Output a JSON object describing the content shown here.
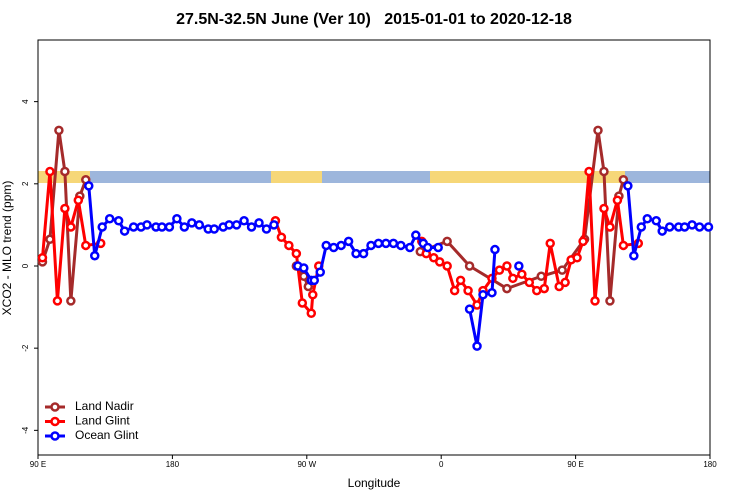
{
  "chart_data": {
    "type": "line",
    "title": "27.5N-32.5N June (Ver 10)   2015-01-01 to 2020-12-18",
    "x_label": "Longitude",
    "y_label": "XCO2 - MLO trend (ppm)",
    "xlim": [
      90,
      540
    ],
    "xticks": [
      {
        "value": 90,
        "label": "90 E"
      },
      {
        "value": 180,
        "label": "180"
      },
      {
        "value": 270,
        "label": "90 W"
      },
      {
        "value": 360,
        "label": "0"
      },
      {
        "value": 450,
        "label": "90 E"
      },
      {
        "value": 540,
        "label": "180"
      }
    ],
    "ylim": [
      -4.6,
      5.5
    ],
    "yticks": [
      -4,
      -2,
      0,
      2,
      4
    ],
    "legend": "bottom-left",
    "series": [
      {
        "name": "Land Nadir",
        "color": "#a52a2a",
        "x": [
          93,
          98,
          104,
          108,
          112,
          118,
          122,
          200,
          263,
          268,
          271,
          300,
          346,
          364,
          379,
          404,
          427,
          441,
          456,
          465,
          469,
          473,
          479,
          482
        ],
        "values": [
          0.1,
          0.65,
          3.3,
          2.3,
          -0.85,
          1.7,
          2.1,
          null,
          0.0,
          -0.25,
          -0.5,
          null,
          0.35,
          0.6,
          0.0,
          -0.55,
          -0.25,
          -0.1,
          0.65,
          3.3,
          2.3,
          -0.85,
          1.7,
          2.1
        ]
      },
      {
        "name": "Land Glint",
        "color": "#ff0000",
        "x": [
          93,
          98,
          103,
          108,
          112,
          117,
          122,
          132,
          200,
          249,
          253,
          258,
          263,
          267,
          273,
          274,
          278,
          320,
          347,
          350,
          355,
          359,
          364,
          369,
          373,
          378,
          384,
          388,
          394,
          399,
          404,
          408,
          414,
          419,
          424,
          429,
          433,
          439,
          443,
          447,
          451,
          455,
          459,
          463,
          469,
          473,
          478,
          482,
          492
        ],
        "values": [
          0.2,
          2.3,
          -0.85,
          1.4,
          0.95,
          1.6,
          0.5,
          0.55,
          null,
          1.1,
          0.7,
          0.5,
          0.3,
          -0.9,
          -1.15,
          -0.7,
          0.0,
          null,
          0.6,
          0.3,
          0.2,
          0.1,
          0.0,
          -0.6,
          -0.35,
          -0.6,
          -0.95,
          -0.6,
          -0.3,
          -0.1,
          0.0,
          -0.3,
          -0.2,
          -0.4,
          -0.6,
          -0.55,
          0.55,
          -0.5,
          -0.4,
          0.15,
          0.2,
          0.6,
          2.3,
          -0.85,
          1.4,
          0.95,
          1.6,
          0.5,
          0.55
        ]
      },
      {
        "name": "Ocean Glint",
        "color": "#0000ff",
        "x": [
          124,
          128,
          133,
          138,
          144,
          148,
          154,
          159,
          163,
          169,
          173,
          178,
          183,
          188,
          193,
          198,
          204,
          208,
          214,
          218,
          223,
          228,
          233,
          238,
          243,
          248,
          255,
          264,
          268,
          273,
          275,
          279,
          283,
          288,
          293,
          298,
          303,
          308,
          313,
          318,
          323,
          328,
          333,
          339,
          343,
          348,
          351,
          358,
          365,
          379,
          384,
          388,
          394,
          396,
          400,
          412,
          450,
          485,
          489,
          494,
          498,
          504,
          508,
          513,
          519,
          523,
          528,
          533,
          539
        ],
        "values": [
          1.95,
          0.25,
          0.95,
          1.15,
          1.1,
          0.85,
          0.95,
          0.95,
          1.0,
          0.95,
          0.95,
          0.95,
          1.15,
          0.95,
          1.05,
          1.0,
          0.9,
          0.9,
          0.95,
          1.0,
          1.0,
          1.1,
          0.95,
          1.05,
          0.9,
          1.0,
          null,
          0.0,
          -0.05,
          -0.35,
          -0.35,
          -0.15,
          0.5,
          0.45,
          0.5,
          0.6,
          0.3,
          0.3,
          0.5,
          0.55,
          0.55,
          0.55,
          0.5,
          0.45,
          0.75,
          0.55,
          0.45,
          0.45,
          null,
          -1.05,
          -1.95,
          -0.7,
          -0.65,
          0.4,
          null,
          0.0,
          null,
          1.95,
          0.25,
          0.95,
          1.15,
          1.1,
          0.85,
          0.95,
          0.95,
          0.95,
          1.0,
          0.95,
          0.95
        ]
      }
    ]
  }
}
